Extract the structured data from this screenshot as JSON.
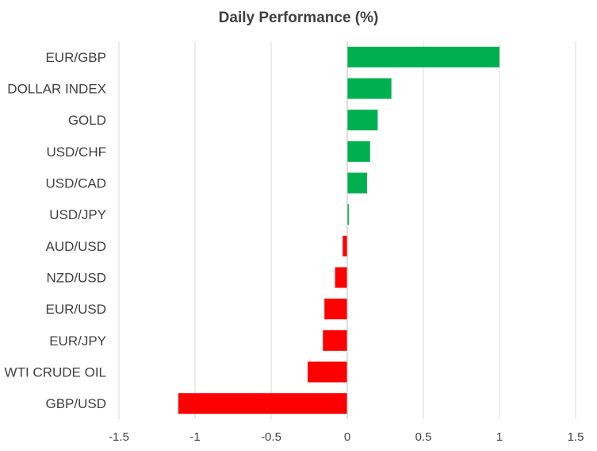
{
  "chart_data": {
    "type": "bar",
    "orientation": "horizontal",
    "title": "Daily Performance (%)",
    "xlabel": "",
    "ylabel": "",
    "xlim": [
      -1.5,
      1.5
    ],
    "xticks": [
      -1.5,
      -1,
      -0.5,
      0,
      0.5,
      1,
      1.5
    ],
    "xtick_labels": [
      "-1.5",
      "-1",
      "-0.5",
      "0",
      "0.5",
      "1",
      "1.5"
    ],
    "grid": "vertical",
    "legend": "none",
    "categories": [
      "EUR/GBP",
      "DOLLAR INDEX",
      "GOLD",
      "USD/CHF",
      "USD/CAD",
      "USD/JPY",
      "AUD/USD",
      "NZD/USD",
      "EUR/USD",
      "EUR/JPY",
      "WTI CRUDE OIL",
      "GBP/USD"
    ],
    "values": [
      1.0,
      0.29,
      0.2,
      0.15,
      0.13,
      0.01,
      -0.03,
      -0.08,
      -0.15,
      -0.16,
      -0.26,
      -1.11
    ],
    "colors": {
      "positive": "#00B050",
      "negative": "#FF0000",
      "grid": "#D9D9D9",
      "axis": "#BFBFBF",
      "text": "#404040"
    }
  }
}
